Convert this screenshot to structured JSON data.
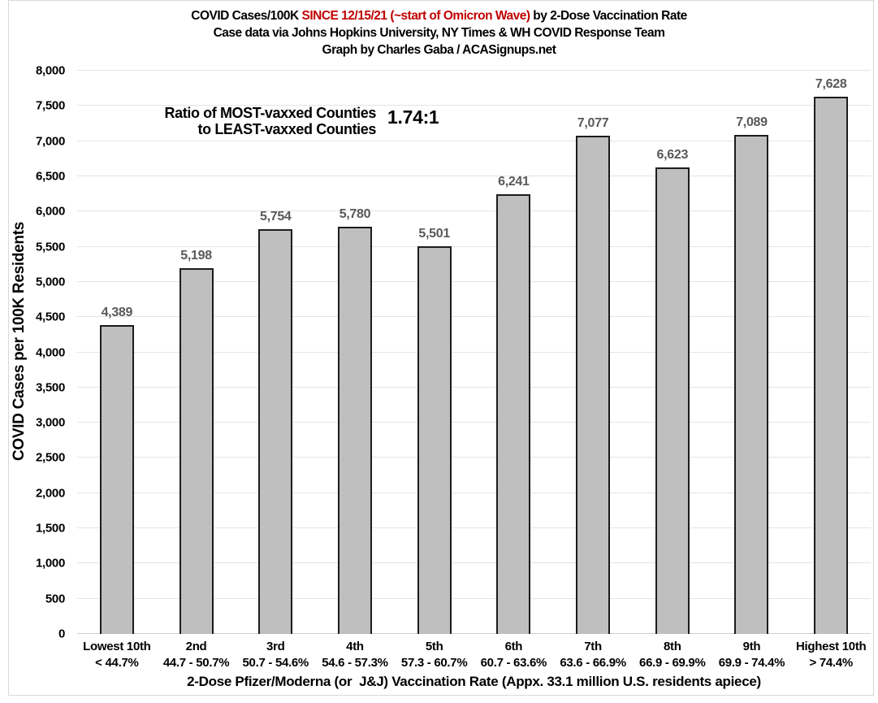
{
  "title": {
    "line1_black1": "COVID Cases/100K ",
    "line1_red": "SINCE 12/15/21 (~start of Omicron Wave)",
    "line1_black2": " by 2-Dose Vaccination Rate",
    "line2": "Case data via Johns Hopkins University, NY Times & WH COVID Response Team",
    "line3": "Graph by Charles Gaba / ACASignups.net"
  },
  "annotation": {
    "label_line1": "Ratio of MOST-vaxxed Counties",
    "label_line2": "to LEAST-vaxxed Counties",
    "ratio": "1.74:1"
  },
  "chart_data": {
    "type": "bar",
    "title": "COVID Cases/100K SINCE 12/15/21 (~start of Omicron Wave) by 2-Dose Vaccination Rate",
    "subtitle1": "Case data via Johns Hopkins University, NY Times & WH COVID Response Team",
    "subtitle2": "Graph by Charles Gaba / ACASignups.net",
    "categories": [
      "Lowest 10th",
      "2nd",
      "3rd",
      "4th",
      "5th",
      "6th",
      "7th",
      "8th",
      "9th",
      "Highest 10th"
    ],
    "category_ranges": [
      "< 44.7%",
      "44.7 - 50.7%",
      "50.7 - 54.6%",
      "54.6 - 57.3%",
      "57.3 - 60.7%",
      "60.7 - 63.6%",
      "63.6 - 66.9%",
      "66.9 - 69.9%",
      "69.9 - 74.4%",
      "> 74.4%"
    ],
    "values": [
      4389,
      5198,
      5754,
      5780,
      5501,
      6241,
      7077,
      6623,
      7089,
      7628
    ],
    "value_labels": [
      "4,389",
      "5,198",
      "5,754",
      "5,780",
      "5,501",
      "6,241",
      "7,077",
      "6,623",
      "7,089",
      "7,628"
    ],
    "ylabel": "COVID Cases per 100K Residents",
    "xlabel": "2-Dose Pfizer/Moderna (or  J&J) Vaccination Rate (Appx. 33.1 million U.S. residents apiece)",
    "ylim": [
      0,
      8000
    ],
    "ytick_step": 500,
    "grid": true,
    "legend": "none",
    "annotation_ratio": "1.74:1"
  },
  "colors": {
    "title_accent_red": "#c00000",
    "bar_fill": "#bfbfbf",
    "bar_border": "#1c1c1c",
    "value_label": "#595959",
    "gridline": "#e4e4e4",
    "frame_border": "#d9d9d9"
  }
}
